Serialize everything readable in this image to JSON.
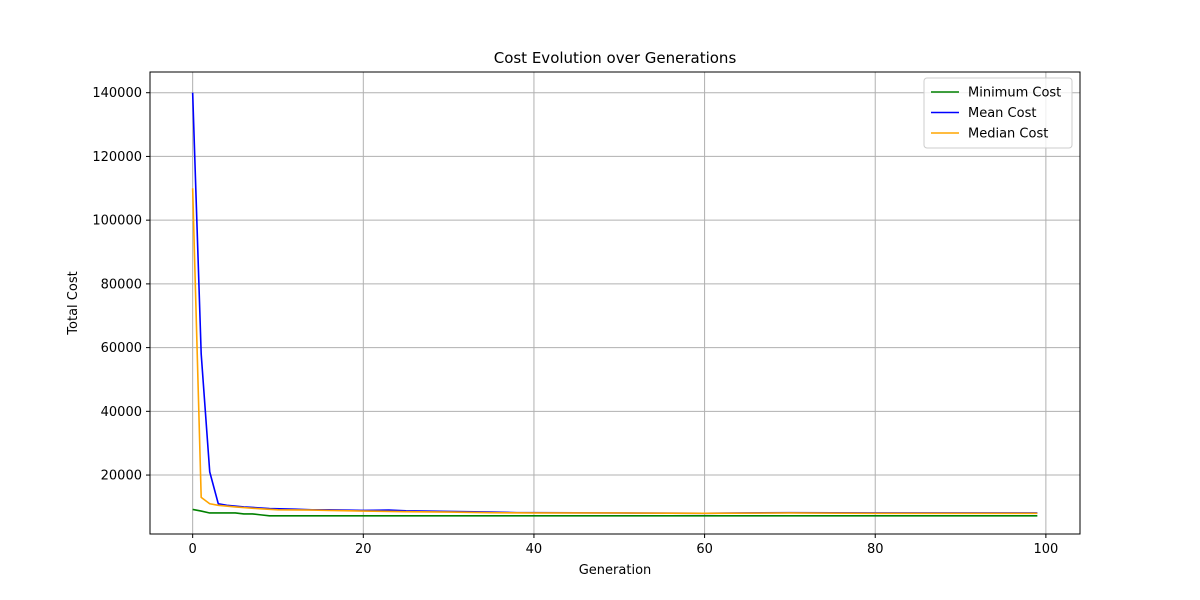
{
  "chart_data": {
    "type": "line",
    "title": "Cost Evolution over Generations",
    "xlabel": "Generation",
    "ylabel": "Total Cost",
    "xlim": [
      -5,
      104
    ],
    "ylim": [
      1500,
      146500
    ],
    "xticks": [
      0,
      20,
      40,
      60,
      80,
      100
    ],
    "yticks": [
      20000,
      40000,
      60000,
      80000,
      100000,
      120000,
      140000
    ],
    "grid": true,
    "legend_position": "top-right",
    "series": [
      {
        "name": "Minimum Cost",
        "color": "#008000",
        "points": [
          [
            0,
            9200
          ],
          [
            1,
            8700
          ],
          [
            2,
            8100
          ],
          [
            3,
            8100
          ],
          [
            4,
            8100
          ],
          [
            5,
            8100
          ],
          [
            6,
            7800
          ],
          [
            7,
            7800
          ],
          [
            8,
            7500
          ],
          [
            9,
            7200
          ],
          [
            12,
            7200
          ],
          [
            20,
            7200
          ],
          [
            40,
            7200
          ],
          [
            60,
            7200
          ],
          [
            80,
            7200
          ],
          [
            99,
            7200
          ]
        ]
      },
      {
        "name": "Mean Cost",
        "color": "#0000ff",
        "points": [
          [
            0,
            140000
          ],
          [
            1,
            58000
          ],
          [
            2,
            21000
          ],
          [
            3,
            11000
          ],
          [
            4,
            10500
          ],
          [
            6,
            10000
          ],
          [
            9,
            9500
          ],
          [
            12,
            9300
          ],
          [
            14,
            9100
          ],
          [
            16,
            9100
          ],
          [
            20,
            8900
          ],
          [
            23,
            9000
          ],
          [
            25,
            8800
          ],
          [
            30,
            8600
          ],
          [
            35,
            8400
          ],
          [
            38,
            8200
          ],
          [
            40,
            8200
          ],
          [
            50,
            8100
          ],
          [
            60,
            8000
          ],
          [
            70,
            8200
          ],
          [
            80,
            8100
          ],
          [
            99,
            8100
          ]
        ]
      },
      {
        "name": "Median Cost",
        "color": "#ffa500",
        "points": [
          [
            0,
            110000
          ],
          [
            1,
            13000
          ],
          [
            2,
            11000
          ],
          [
            3,
            10500
          ],
          [
            5,
            10000
          ],
          [
            8,
            9400
          ],
          [
            10,
            9100
          ],
          [
            14,
            9000
          ],
          [
            16,
            8900
          ],
          [
            20,
            8700
          ],
          [
            25,
            8500
          ],
          [
            30,
            8400
          ],
          [
            35,
            8200
          ],
          [
            40,
            8100
          ],
          [
            50,
            8100
          ],
          [
            60,
            8000
          ],
          [
            70,
            8100
          ],
          [
            80,
            8000
          ],
          [
            99,
            8000
          ]
        ]
      }
    ]
  }
}
